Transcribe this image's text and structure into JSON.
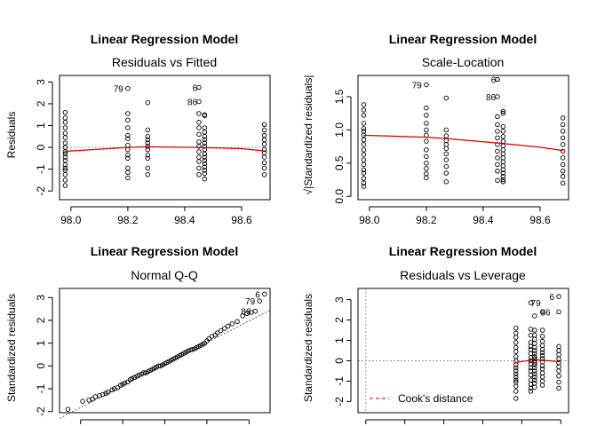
{
  "figure": {
    "background": "#ffffff",
    "point_color": "#000000",
    "smooth_color": "#cc0000",
    "refline_color": "#999999"
  },
  "chart_data": [
    {
      "type": "scatter",
      "title": "Linear Regression Model",
      "subtitle": "Residuals vs Fitted",
      "xlabel": "",
      "ylabel": "Residuals",
      "xlim": [
        97.96,
        98.7
      ],
      "ylim": [
        -2.4,
        3.3
      ],
      "xticks": [
        98.0,
        98.2,
        98.4,
        98.6
      ],
      "xtick_labels": [
        "98.0",
        "98.2",
        "98.4",
        "98.6"
      ],
      "yticks": [
        -2,
        -1,
        0,
        1,
        2,
        3
      ],
      "ytick_labels": [
        "-2",
        "-1",
        "0",
        "1",
        "2",
        "3"
      ],
      "hline": 0,
      "smooth": [
        [
          97.98,
          -0.18
        ],
        [
          98.2,
          0.0
        ],
        [
          98.26,
          0.03
        ],
        [
          98.45,
          0.0
        ],
        [
          98.6,
          -0.06
        ],
        [
          98.68,
          -0.16
        ]
      ],
      "labels": [
        {
          "x": 98.2,
          "y": 2.7,
          "text": "79"
        },
        {
          "x": 98.46,
          "y": 2.75,
          "text": "6"
        },
        {
          "x": 98.46,
          "y": 2.1,
          "text": "86"
        }
      ],
      "series": [
        {
          "x": [
            97.98,
            97.98,
            97.98,
            97.98,
            97.98,
            97.98,
            97.98,
            97.98,
            97.98,
            97.98,
            97.98,
            97.98,
            97.98,
            97.98,
            97.98,
            97.98,
            97.98,
            97.98,
            98.2,
            98.2,
            98.2,
            98.2,
            98.2,
            98.2,
            98.2,
            98.2,
            98.2,
            98.2,
            98.2,
            98.2,
            98.2,
            98.27,
            98.27,
            98.27,
            98.27,
            98.27,
            98.27,
            98.27,
            98.27,
            98.27,
            98.27,
            98.27,
            98.45,
            98.45,
            98.45,
            98.45,
            98.45,
            98.45,
            98.45,
            98.45,
            98.45,
            98.45,
            98.45,
            98.45,
            98.45,
            98.47,
            98.47,
            98.47,
            98.47,
            98.47,
            98.47,
            98.47,
            98.47,
            98.47,
            98.47,
            98.47,
            98.47,
            98.47,
            98.47,
            98.47,
            98.47,
            98.47,
            98.68,
            98.68,
            98.68,
            98.68,
            98.68,
            98.68,
            98.68,
            98.68,
            98.68,
            98.68,
            98.68
          ],
          "y": [
            1.6,
            1.35,
            1.15,
            0.9,
            0.65,
            0.45,
            0.2,
            0.0,
            -0.2,
            -0.3,
            -0.45,
            -0.6,
            -0.8,
            -0.95,
            -1.05,
            -1.25,
            -1.5,
            -1.75,
            2.7,
            1.55,
            1.25,
            0.9,
            0.55,
            0.4,
            0.1,
            -0.1,
            -0.35,
            -0.5,
            -0.95,
            -1.15,
            -1.4,
            2.05,
            0.8,
            0.5,
            0.35,
            0.2,
            0.05,
            -0.1,
            -0.35,
            -0.5,
            -0.95,
            -1.25,
            2.75,
            2.1,
            1.55,
            1.15,
            0.9,
            0.6,
            0.25,
            0.05,
            -0.2,
            -0.45,
            -0.65,
            -0.95,
            -1.25,
            1.5,
            1.45,
            0.9,
            0.7,
            0.5,
            0.35,
            0.2,
            0.05,
            -0.1,
            -0.3,
            -0.45,
            -0.6,
            -0.75,
            -0.9,
            -1.05,
            -1.2,
            -1.45,
            1.05,
            0.8,
            0.55,
            0.35,
            0.15,
            -0.1,
            -0.25,
            -0.45,
            -0.7,
            -0.95,
            -1.25
          ]
        }
      ]
    },
    {
      "type": "scatter",
      "title": "Linear Regression Model",
      "subtitle": "Scale-Location",
      "xlabel": "",
      "ylabel": "√|Standardized residuals|",
      "xlim": [
        97.96,
        98.7
      ],
      "ylim": [
        -0.05,
        1.82
      ],
      "xticks": [
        98.0,
        98.2,
        98.4,
        98.6
      ],
      "xtick_labels": [
        "98.0",
        "98.2",
        "98.4",
        "98.6"
      ],
      "yticks": [
        0.0,
        0.5,
        1.0,
        1.5
      ],
      "ytick_labels": [
        "0.0",
        "0.5",
        "1.0",
        "1.5"
      ],
      "smooth": [
        [
          97.98,
          0.92
        ],
        [
          98.2,
          0.89
        ],
        [
          98.27,
          0.87
        ],
        [
          98.46,
          0.8
        ],
        [
          98.6,
          0.74
        ],
        [
          98.68,
          0.69
        ]
      ],
      "labels": [
        {
          "x": 98.2,
          "y": 1.68,
          "text": "79"
        },
        {
          "x": 98.46,
          "y": 1.76,
          "text": "6"
        },
        {
          "x": 98.46,
          "y": 1.5,
          "text": "86"
        }
      ],
      "series": [
        {
          "x": [
            97.98,
            97.98,
            97.98,
            97.98,
            97.98,
            97.98,
            97.98,
            97.98,
            97.98,
            97.98,
            97.98,
            97.98,
            97.98,
            97.98,
            97.98,
            97.98,
            97.98,
            97.98,
            98.2,
            98.2,
            98.2,
            98.2,
            98.2,
            98.2,
            98.2,
            98.2,
            98.2,
            98.2,
            98.2,
            98.2,
            98.2,
            98.27,
            98.27,
            98.27,
            98.27,
            98.27,
            98.27,
            98.27,
            98.27,
            98.27,
            98.27,
            98.27,
            98.45,
            98.45,
            98.45,
            98.45,
            98.45,
            98.45,
            98.45,
            98.45,
            98.45,
            98.45,
            98.45,
            98.45,
            98.45,
            98.47,
            98.47,
            98.47,
            98.47,
            98.47,
            98.47,
            98.47,
            98.47,
            98.47,
            98.47,
            98.47,
            98.47,
            98.47,
            98.47,
            98.47,
            98.47,
            98.47,
            98.68,
            98.68,
            98.68,
            98.68,
            98.68,
            98.68,
            98.68,
            98.68,
            98.68,
            98.68,
            98.68
          ],
          "y": [
            1.38,
            1.3,
            1.22,
            1.1,
            1.02,
            0.98,
            0.92,
            0.85,
            0.78,
            0.7,
            0.63,
            0.55,
            0.48,
            0.4,
            0.35,
            0.27,
            0.2,
            0.15,
            1.68,
            1.33,
            1.22,
            1.1,
            1.0,
            0.92,
            0.83,
            0.7,
            0.6,
            0.5,
            0.42,
            0.34,
            0.28,
            1.48,
            1.0,
            0.91,
            0.84,
            0.78,
            0.72,
            0.64,
            0.55,
            0.45,
            0.35,
            0.22,
            1.76,
            1.76,
            1.5,
            1.2,
            1.08,
            0.98,
            0.88,
            0.78,
            0.68,
            0.58,
            0.48,
            0.38,
            0.24,
            1.28,
            1.25,
            1.05,
            0.98,
            0.9,
            0.83,
            0.76,
            0.7,
            0.64,
            0.58,
            0.52,
            0.46,
            0.4,
            0.35,
            0.3,
            0.25,
            0.22,
            1.18,
            1.08,
            0.98,
            0.88,
            0.78,
            0.68,
            0.58,
            0.48,
            0.38,
            0.3,
            0.2
          ]
        }
      ]
    },
    {
      "type": "scatter",
      "title": "Linear Regression Model",
      "subtitle": "Normal Q-Q",
      "xlabel": "",
      "ylabel": "Standardized residuals",
      "xlim": [
        -2.5,
        2.5
      ],
      "ylim": [
        -2.05,
        3.4
      ],
      "xticks": [
        -2,
        -1,
        0,
        1,
        2
      ],
      "xtick_labels": [
        "",
        "",
        "",
        "",
        ""
      ],
      "yticks": [
        -2,
        -1,
        0,
        1,
        2,
        3
      ],
      "ytick_labels": [
        "-2",
        "-1",
        "0",
        "1",
        "2",
        "3"
      ],
      "refline": [
        [
          -2.5,
          -2.3
        ],
        [
          2.5,
          2.45
        ]
      ],
      "labels": [
        {
          "x": 2.37,
          "y": 3.15,
          "text": "6"
        },
        {
          "x": 2.25,
          "y": 2.85,
          "text": "79"
        },
        {
          "x": 2.15,
          "y": 2.4,
          "text": "86"
        }
      ],
      "series": [
        {
          "x": [
            -2.3,
            -1.95,
            -1.8,
            -1.72,
            -1.65,
            -1.55,
            -1.47,
            -1.4,
            -1.35,
            -1.25,
            -1.2,
            -1.12,
            -1.05,
            -1.0,
            -0.95,
            -0.88,
            -0.82,
            -0.78,
            -0.72,
            -0.66,
            -0.61,
            -0.55,
            -0.5,
            -0.45,
            -0.4,
            -0.35,
            -0.3,
            -0.25,
            -0.2,
            -0.15,
            -0.1,
            -0.05,
            0.0,
            0.05,
            0.1,
            0.15,
            0.2,
            0.25,
            0.3,
            0.35,
            0.4,
            0.45,
            0.5,
            0.55,
            0.6,
            0.65,
            0.7,
            0.75,
            0.8,
            0.85,
            0.9,
            0.95,
            1.0,
            1.05,
            1.12,
            1.2,
            1.25,
            1.33,
            1.42,
            1.5,
            1.6,
            1.72,
            1.85,
            1.95,
            2.05,
            2.15,
            2.25,
            2.37
          ],
          "y": [
            -1.9,
            -1.55,
            -1.5,
            -1.45,
            -1.35,
            -1.3,
            -1.25,
            -1.2,
            -1.15,
            -1.05,
            -1.0,
            -0.95,
            -0.85,
            -0.8,
            -0.75,
            -0.7,
            -0.6,
            -0.55,
            -0.5,
            -0.45,
            -0.4,
            -0.35,
            -0.3,
            -0.3,
            -0.25,
            -0.2,
            -0.15,
            -0.1,
            -0.05,
            0.0,
            0.0,
            0.05,
            0.1,
            0.15,
            0.2,
            0.25,
            0.3,
            0.35,
            0.4,
            0.45,
            0.5,
            0.55,
            0.6,
            0.65,
            0.7,
            0.72,
            0.75,
            0.8,
            0.85,
            0.9,
            0.95,
            1.0,
            1.1,
            1.2,
            1.3,
            1.35,
            1.45,
            1.55,
            1.65,
            1.75,
            1.85,
            1.95,
            2.2,
            2.3,
            2.35,
            2.4,
            2.85,
            3.15
          ]
        }
      ]
    },
    {
      "type": "scatter",
      "title": "Linear Regression Model",
      "subtitle": "Residuals vs Leverage",
      "xlabel": "",
      "ylabel": "Standardized residuals",
      "xlim": [
        -0.002,
        0.052
      ],
      "ylim": [
        -2.55,
        3.55
      ],
      "xticks": [
        0.0,
        0.01,
        0.02,
        0.03,
        0.04,
        0.05
      ],
      "xtick_labels": [
        "",
        "",
        "",
        "",
        "",
        ""
      ],
      "yticks": [
        -2,
        -1,
        0,
        1,
        2,
        3
      ],
      "ytick_labels": [
        "-2",
        "-1",
        "0",
        "1",
        "2",
        "3"
      ],
      "hline": 0,
      "vline": 0,
      "smooth": [
        [
          0.038,
          -0.1
        ],
        [
          0.043,
          0.05
        ],
        [
          0.047,
          0.0
        ],
        [
          0.05,
          -0.05
        ]
      ],
      "legend": {
        "label": "Cook's distance",
        "position": "bottom-left"
      },
      "labels": [
        {
          "x": 0.0495,
          "y": 3.15,
          "text": "6"
        },
        {
          "x": 0.046,
          "y": 2.85,
          "text": "79"
        },
        {
          "x": 0.0485,
          "y": 2.4,
          "text": "86"
        }
      ],
      "series": [
        {
          "x": [
            0.0385,
            0.0385,
            0.0385,
            0.0385,
            0.0385,
            0.0385,
            0.0385,
            0.0385,
            0.0385,
            0.0385,
            0.0385,
            0.0385,
            0.0385,
            0.0385,
            0.0385,
            0.0385,
            0.0385,
            0.0385,
            0.0423,
            0.0423,
            0.0423,
            0.0423,
            0.0423,
            0.0423,
            0.0423,
            0.0423,
            0.0423,
            0.0423,
            0.0423,
            0.0423,
            0.0423,
            0.0423,
            0.0423,
            0.0423,
            0.0423,
            0.0433,
            0.0433,
            0.0433,
            0.0433,
            0.0433,
            0.0433,
            0.0433,
            0.0433,
            0.0433,
            0.0433,
            0.0433,
            0.0433,
            0.0433,
            0.0433,
            0.0433,
            0.0433,
            0.0433,
            0.0433,
            0.0433,
            0.0433,
            0.0453,
            0.0453,
            0.0453,
            0.0453,
            0.0453,
            0.0453,
            0.0453,
            0.0453,
            0.0453,
            0.0453,
            0.0453,
            0.0453,
            0.0453,
            0.0453,
            0.0453,
            0.0453,
            0.0495,
            0.0495,
            0.0495,
            0.0495,
            0.0495,
            0.0495,
            0.0495,
            0.0495,
            0.0495,
            0.0495,
            0.0495,
            0.0495
          ],
          "y": [
            1.6,
            1.35,
            1.15,
            0.9,
            0.65,
            0.45,
            0.2,
            0.0,
            -0.2,
            -0.35,
            -0.5,
            -0.65,
            -0.8,
            -0.95,
            -1.05,
            -1.25,
            -1.5,
            -1.85,
            2.85,
            1.55,
            1.25,
            0.9,
            0.7,
            0.55,
            0.35,
            0.15,
            0.0,
            -0.15,
            -0.35,
            -0.5,
            -0.7,
            -0.95,
            -1.15,
            -1.35,
            -1.5,
            2.2,
            1.5,
            1.25,
            1.05,
            0.85,
            0.65,
            0.5,
            0.35,
            0.2,
            0.1,
            0.0,
            -0.1,
            -0.2,
            -0.35,
            -0.5,
            -0.65,
            -0.8,
            -0.95,
            -1.1,
            -1.3,
            2.4,
            1.5,
            1.2,
            0.95,
            0.75,
            0.55,
            0.4,
            0.25,
            0.1,
            -0.05,
            -0.25,
            -0.4,
            -0.6,
            -0.8,
            -1.0,
            -1.2,
            3.15,
            2.4,
            0.7,
            0.5,
            0.3,
            0.1,
            -0.1,
            -0.3,
            -0.5,
            -0.75,
            -1.05,
            -1.35
          ]
        }
      ]
    }
  ]
}
